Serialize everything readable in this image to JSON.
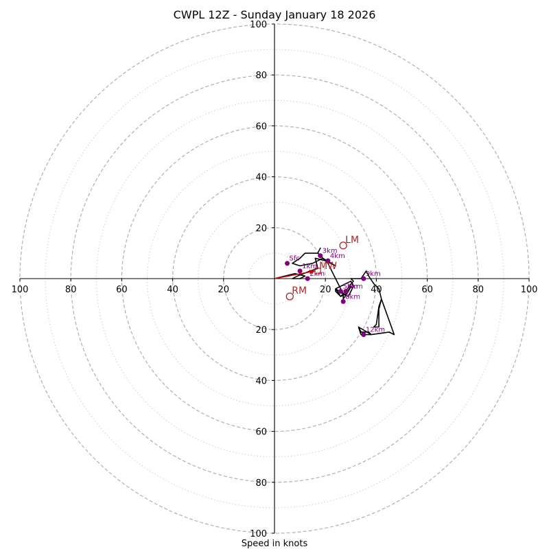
{
  "chart_data": {
    "type": "hodograph",
    "title": "CWPL 12Z - Sunday January 18 2026",
    "xlabel": "Speed in knots",
    "units": "knots",
    "axis_range": [
      -100,
      100
    ],
    "x_tick_labels": [
      "100",
      "80",
      "60",
      "40",
      "20",
      "20",
      "40",
      "60",
      "80",
      "100"
    ],
    "y_tick_labels": [
      "100",
      "80",
      "60",
      "40",
      "20",
      "20",
      "40",
      "60",
      "80",
      "100"
    ],
    "rings_dashed": [
      20,
      40,
      60,
      80,
      100
    ],
    "rings_dotted": [
      10,
      30,
      50,
      70,
      90
    ],
    "trace": [
      [
        0,
        0
      ],
      [
        8,
        2
      ],
      [
        12,
        1
      ],
      [
        10,
        0
      ],
      [
        7,
        0
      ],
      [
        9,
        1
      ],
      [
        14,
        3
      ],
      [
        17,
        4
      ],
      [
        16,
        8
      ],
      [
        20,
        7
      ],
      [
        22,
        6
      ],
      [
        24,
        5
      ],
      [
        19,
        8
      ],
      [
        17,
        10
      ],
      [
        18,
        12
      ],
      [
        17,
        10
      ],
      [
        13,
        10
      ],
      [
        12,
        10
      ],
      [
        10,
        8
      ],
      [
        7,
        6
      ],
      [
        10,
        5
      ],
      [
        15,
        6
      ],
      [
        19,
        8
      ],
      [
        21,
        6
      ],
      [
        24,
        0
      ],
      [
        27,
        -6
      ],
      [
        29,
        -7
      ],
      [
        30,
        -5
      ],
      [
        31,
        -3
      ],
      [
        30,
        -1
      ],
      [
        28,
        -2
      ],
      [
        24,
        -4
      ],
      [
        27,
        -6
      ],
      [
        27,
        -8
      ],
      [
        29,
        -5
      ],
      [
        30,
        -3
      ],
      [
        28,
        -6
      ],
      [
        26,
        -7
      ],
      [
        24,
        -4
      ],
      [
        24,
        -5
      ],
      [
        26,
        -7
      ],
      [
        27,
        -6
      ],
      [
        31,
        -1
      ],
      [
        30,
        0
      ],
      [
        34,
        0
      ],
      [
        36,
        3
      ],
      [
        37,
        1
      ],
      [
        39,
        -2
      ],
      [
        41,
        -4
      ],
      [
        42,
        -8
      ],
      [
        41,
        -11
      ],
      [
        40,
        -18
      ],
      [
        39,
        -19
      ],
      [
        41,
        -19
      ],
      [
        41,
        -12
      ],
      [
        42,
        -8
      ],
      [
        47,
        -22
      ],
      [
        45,
        -21
      ],
      [
        38,
        -22
      ],
      [
        36,
        -22
      ],
      [
        34,
        -22
      ],
      [
        33,
        -19
      ],
      [
        34,
        -21
      ],
      [
        37,
        -21
      ],
      [
        38,
        -22
      ],
      [
        33,
        -19
      ]
    ],
    "height_points": [
      {
        "label": "1km",
        "u": 10,
        "v": 3
      },
      {
        "label": "2km",
        "u": 13,
        "v": 0
      },
      {
        "label": "3km",
        "u": 18,
        "v": 9
      },
      {
        "label": "4km",
        "u": 21,
        "v": 7
      },
      {
        "label": "5km",
        "u": 26,
        "v": -5
      },
      {
        "label": "6km",
        "u": 28,
        "v": -5
      },
      {
        "label": "8km",
        "u": 27,
        "v": -9
      },
      {
        "label": "9km",
        "u": 35,
        "v": 0
      },
      {
        "label": "12km",
        "u": 35,
        "v": -22
      },
      {
        "label": "Sfc",
        "u": 5,
        "v": 6
      }
    ],
    "storm_motions": [
      {
        "label": "LM",
        "u": 27,
        "v": 13
      },
      {
        "label": "RM",
        "u": 6,
        "v": -7
      },
      {
        "label": "MW",
        "u": 17,
        "v": 3
      }
    ],
    "shear_vector": {
      "from": [
        0,
        0
      ],
      "to": [
        16,
        3
      ]
    },
    "colors": {
      "trace": "#000000",
      "points": "#800080",
      "motion": "#b22222",
      "shear": "#cc0000",
      "grid": "#b0b0b0"
    }
  }
}
